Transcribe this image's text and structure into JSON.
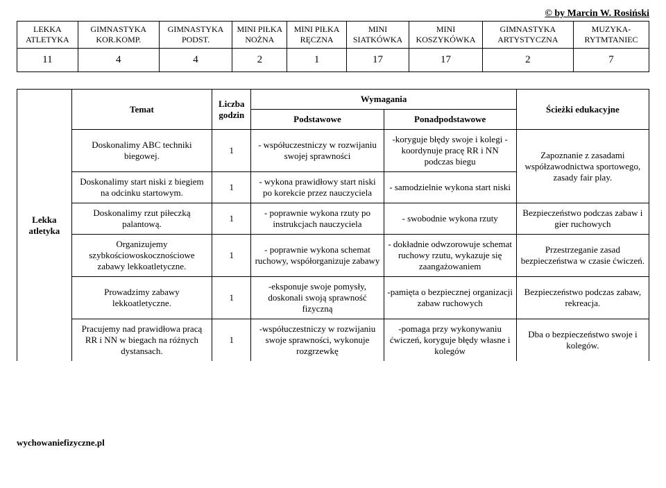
{
  "author": "© by Marcin W. Rosiński",
  "topHeaders": [
    "LEKKA ATLETYKA",
    "GIMNASTYKA KOR.KOMP.",
    "GIMNASTYKA PODST.",
    "MINI PIŁKA NOŻNA",
    "MINI PIŁKA RĘCZNA",
    "MINI SIATKÓWKA",
    "MINI KOSZYKÓWKA",
    "GIMNASTYKA ARTYSTYCZNA",
    "MUZYKA-RYTMTANIEC"
  ],
  "topValues": [
    "11",
    "4",
    "4",
    "2",
    "1",
    "17",
    "17",
    "2",
    "7"
  ],
  "mainHeader": {
    "temat": "Temat",
    "godzin": "Liczba godzin",
    "wymagania": "Wymagania",
    "podst": "Podstawowe",
    "ponad": "Ponadpodstawowe",
    "sciezki": "Ścieżki edukacyjne"
  },
  "sideLabel": "Lekka atletyka",
  "rows": [
    {
      "temat": "Doskonalimy ABC techniki biegowej.",
      "godz": "1",
      "podst": "- współuczestniczy w rozwijaniu swojej sprawności",
      "ponad": "-koryguje błędy swoje i kolegi\n-koordynuje pracę RR i NN podczas biegu",
      "sciez": ""
    },
    {
      "temat": "Doskonalimy start niski z biegiem na odcinku startowym.",
      "godz": "1",
      "podst": "- wykona prawidłowy start niski po korekcie przez nauczyciela",
      "ponad": "- samodzielnie wykona start niski",
      "sciez": "Zapoznanie z zasadami współzawodnictwa sportowego, zasady fair play."
    },
    {
      "temat": "Doskonalimy rzut piłeczką palantową.",
      "godz": "1",
      "podst": "- poprawnie wykona rzuty po instrukcjach nauczyciela",
      "ponad": "- swobodnie wykona rzuty",
      "sciez": "Bezpieczeństwo podczas zabaw i gier ruchowych"
    },
    {
      "temat": "Organizujemy szybkościowoskocznościowe zabawy lekkoatletyczne.",
      "godz": "1",
      "podst": "- poprawnie wykona schemat ruchowy, współorganizuje zabawy",
      "ponad": "- dokładnie odwzorowuje schemat ruchowy rzutu, wykazuje się zaangażowaniem",
      "sciez": "Przestrzeganie zasad bezpieczeństwa w czasie ćwiczeń."
    },
    {
      "temat": "Prowadzimy zabawy lekkoatletyczne.",
      "godz": "1",
      "podst": "-eksponuje swoje pomysły, doskonali swoją sprawność fizyczną",
      "ponad": "-pamięta o bezpiecznej organizacji zabaw ruchowych",
      "sciez": "Bezpieczeństwo podczas zabaw, rekreacja."
    },
    {
      "temat": "Pracujemy nad prawidłowa pracą RR i NN w biegach na różnych dystansach.",
      "godz": "1",
      "podst": "-współuczestniczy w rozwijaniu swoje sprawności, wykonuje rozgrzewkę",
      "ponad": "-pomaga przy wykonywaniu ćwiczeń, koryguje błędy własne i kolegów",
      "sciez": "Dba o bezpieczeństwo swoje i kolegów."
    }
  ],
  "footer": "wychowaniefizyczne.pl"
}
